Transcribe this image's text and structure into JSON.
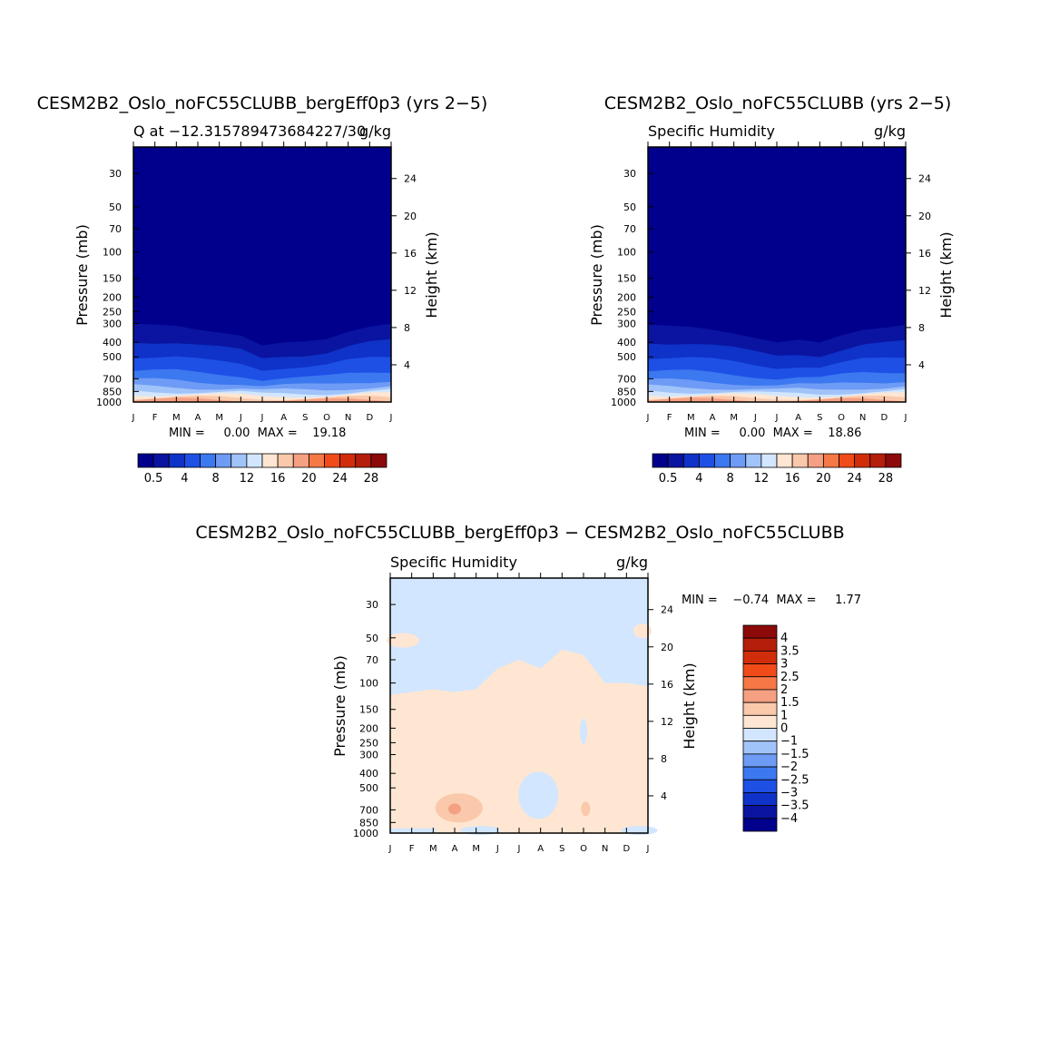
{
  "palette": {
    "main": [
      "#00008c",
      "#0a14a0",
      "#0f32c8",
      "#1e50e6",
      "#3c78f0",
      "#6e9bf5",
      "#a0c3fa",
      "#d2e6ff",
      "#ffe6d2",
      "#fac8aa",
      "#f5a082",
      "#f57846",
      "#f04b19",
      "#d22d0a",
      "#b41e0a",
      "#8c0a0a"
    ],
    "main_labels": [
      "0.5",
      "4",
      "8",
      "12",
      "16",
      "20",
      "24",
      "28"
    ],
    "diff": [
      "#8c0a0a",
      "#b41e0a",
      "#d22d0a",
      "#f04b19",
      "#f57846",
      "#f5a082",
      "#fac8aa",
      "#ffe6d2",
      "#d2e6ff",
      "#a0c3fa",
      "#6e9bf5",
      "#3c78f0",
      "#1e50e6",
      "#0f32c8",
      "#0a14a0",
      "#00008c"
    ],
    "diff_labels": [
      "4",
      "3.5",
      "3",
      "2.5",
      "2",
      "1.5",
      "1",
      "0",
      "−1",
      "−1.5",
      "−2",
      "−2.5",
      "−3",
      "−3.5",
      "−4"
    ]
  },
  "chart_data": [
    {
      "type": "contour",
      "title": "CESM2B2_Oslo_noFC55CLUBB_bergEff0p3 (yrs 2−5)",
      "left_label": "Q at −12.315789473684227/30",
      "right_label": "g/kg",
      "ylabel": "Pressure (mb)",
      "ylabel_right": "Height (km)",
      "x_ticks": [
        "J",
        "F",
        "M",
        "A",
        "M",
        "J",
        "J",
        "A",
        "S",
        "O",
        "N",
        "D",
        "J"
      ],
      "y_ticks": [
        "30",
        "50",
        "70",
        "100",
        "150",
        "200",
        "250",
        "300",
        "400",
        "500",
        "700",
        "850",
        "1000"
      ],
      "height_ticks": [
        "24",
        "20",
        "16",
        "12",
        "8",
        "4"
      ],
      "min_max": "MIN =     0.00  MAX =    19.18",
      "colorbar_labels_key": "main",
      "tropopause_mb": [
        300,
        305,
        310,
        330,
        345,
        360,
        420,
        400,
        395,
        380,
        340,
        315,
        300
      ]
    },
    {
      "type": "contour",
      "title": "CESM2B2_Oslo_noFC55CLUBB (yrs 2−5)",
      "left_label": "Specific Humidity",
      "right_label": "g/kg",
      "ylabel": "Pressure (mb)",
      "ylabel_right": "Height (km)",
      "x_ticks": [
        "J",
        "F",
        "M",
        "A",
        "M",
        "J",
        "J",
        "A",
        "S",
        "O",
        "N",
        "D",
        "J"
      ],
      "y_ticks": [
        "30",
        "50",
        "70",
        "100",
        "150",
        "200",
        "250",
        "300",
        "400",
        "500",
        "700",
        "850",
        "1000"
      ],
      "height_ticks": [
        "24",
        "20",
        "16",
        "12",
        "8",
        "4"
      ],
      "min_max": "MIN =     0.00  MAX =    18.86",
      "colorbar_labels_key": "main",
      "tropopause_mb": [
        305,
        310,
        315,
        330,
        350,
        375,
        400,
        385,
        400,
        360,
        330,
        320,
        305
      ]
    },
    {
      "type": "contour",
      "title": "CESM2B2_Oslo_noFC55CLUBB_bergEff0p3 − CESM2B2_Oslo_noFC55CLUBB",
      "left_label": "Specific Humidity",
      "right_label": "g/kg",
      "ylabel": "Pressure (mb)",
      "ylabel_right": "Height (km)",
      "x_ticks": [
        "J",
        "F",
        "M",
        "A",
        "M",
        "J",
        "J",
        "A",
        "S",
        "O",
        "N",
        "D",
        "J"
      ],
      "y_ticks": [
        "30",
        "50",
        "70",
        "100",
        "150",
        "200",
        "250",
        "300",
        "400",
        "500",
        "700",
        "850",
        "1000"
      ],
      "height_ticks": [
        "24",
        "20",
        "16",
        "12",
        "8",
        "4"
      ],
      "min_max": "MIN =    −0.74  MAX =     1.77",
      "colorbar_labels_key": "diff"
    }
  ]
}
